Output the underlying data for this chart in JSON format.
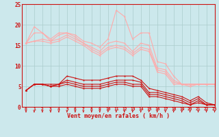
{
  "x": [
    0,
    1,
    2,
    3,
    4,
    5,
    6,
    7,
    8,
    9,
    10,
    11,
    12,
    13,
    14,
    15,
    16,
    17,
    18,
    19,
    20,
    21,
    22,
    23
  ],
  "line1": [
    15.5,
    19.5,
    18.0,
    16.5,
    18.0,
    18.0,
    17.5,
    16.0,
    15.5,
    14.5,
    16.5,
    23.5,
    22.0,
    16.5,
    18.0,
    18.0,
    11.0,
    10.5,
    7.5,
    5.5,
    5.0,
    5.5,
    5.5,
    5.5
  ],
  "line2": [
    15.5,
    18.0,
    18.0,
    16.0,
    17.5,
    18.0,
    17.0,
    15.5,
    14.5,
    13.5,
    15.5,
    16.0,
    15.5,
    13.5,
    15.5,
    15.0,
    9.5,
    9.0,
    6.5,
    5.5,
    5.5,
    5.5,
    5.5,
    5.5
  ],
  "line3": [
    15.5,
    16.0,
    16.5,
    16.0,
    16.5,
    17.5,
    16.5,
    15.5,
    14.0,
    13.0,
    14.5,
    15.0,
    14.5,
    13.0,
    14.5,
    14.0,
    9.0,
    8.5,
    6.0,
    5.5,
    5.5,
    5.5,
    5.5,
    5.5
  ],
  "line4": [
    15.5,
    16.0,
    16.0,
    15.5,
    16.0,
    17.0,
    16.0,
    15.0,
    13.5,
    12.5,
    14.0,
    14.5,
    14.0,
    12.5,
    14.0,
    13.5,
    8.5,
    8.0,
    5.5,
    5.5,
    5.5,
    5.5,
    5.5,
    5.5
  ],
  "line5": [
    4.0,
    5.5,
    5.5,
    5.5,
    5.5,
    7.5,
    7.0,
    6.5,
    6.5,
    6.5,
    7.0,
    7.5,
    7.5,
    7.5,
    6.5,
    4.5,
    4.0,
    3.5,
    3.0,
    2.5,
    1.5,
    2.5,
    1.0,
    0.5
  ],
  "line6": [
    4.0,
    5.5,
    5.5,
    5.0,
    5.5,
    6.5,
    6.0,
    5.5,
    5.5,
    5.5,
    6.0,
    6.5,
    6.5,
    6.5,
    6.0,
    3.5,
    3.5,
    3.0,
    2.5,
    2.0,
    1.0,
    2.0,
    0.5,
    0.5
  ],
  "line7": [
    4.0,
    5.5,
    5.5,
    5.0,
    5.5,
    6.0,
    5.5,
    5.0,
    5.0,
    5.0,
    5.5,
    6.0,
    6.0,
    5.5,
    5.5,
    3.0,
    3.0,
    2.5,
    2.0,
    1.5,
    0.5,
    1.5,
    0.5,
    0.5
  ],
  "line8": [
    4.0,
    5.5,
    5.5,
    5.0,
    5.0,
    5.5,
    5.0,
    4.5,
    4.5,
    4.5,
    5.0,
    5.5,
    5.5,
    5.0,
    5.0,
    2.5,
    2.5,
    2.0,
    1.5,
    1.0,
    0.5,
    1.0,
    0.5,
    0.5
  ],
  "bg_color": "#cce8ec",
  "grid_color": "#aacccc",
  "xlabel": "Vent moyen/en rafales ( km/h )",
  "xlim": [
    -0.5,
    23
  ],
  "ylim": [
    0,
    25
  ],
  "yticks": [
    0,
    5,
    10,
    15,
    20,
    25
  ],
  "xticks": [
    0,
    1,
    2,
    3,
    4,
    5,
    6,
    7,
    8,
    9,
    10,
    11,
    12,
    13,
    14,
    15,
    16,
    17,
    18,
    19,
    20,
    21,
    22,
    23
  ],
  "light_pink": "#ffaaaa",
  "dark_red": "#cc1111",
  "spine_color": "#cc1111"
}
